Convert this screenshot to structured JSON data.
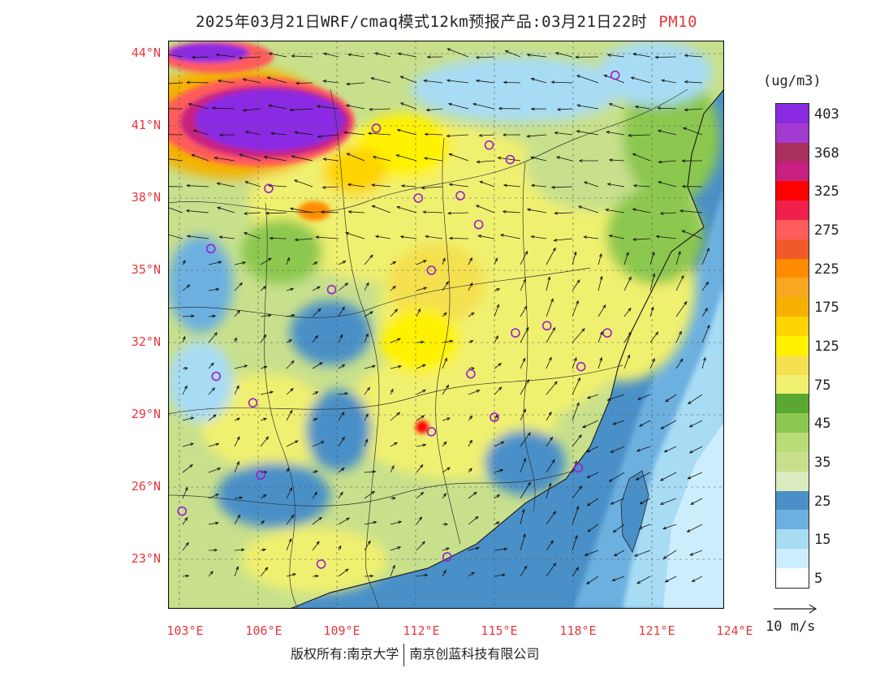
{
  "header": {
    "title": "2025年03月21日WRF/cmaq模式12km预报产品:03月21日22时",
    "variable": "PM10"
  },
  "axes": {
    "lat_labels": [
      "44°N",
      "41°N",
      "38°N",
      "35°N",
      "32°N",
      "29°N",
      "26°N",
      "23°N"
    ],
    "lon_labels": [
      "103°E",
      "106°E",
      "109°E",
      "112°E",
      "115°E",
      "118°E",
      "121°E",
      "124°E"
    ],
    "lon_range": [
      103,
      124
    ],
    "lat_range": [
      21,
      44.5
    ]
  },
  "legend": {
    "unit": "(ug/m3)",
    "levels": [
      {
        "label": "403",
        "color": "#8a2be2"
      },
      {
        "label": "",
        "color": "#a33ad0"
      },
      {
        "label": "368",
        "color": "#a8305c"
      },
      {
        "label": "",
        "color": "#c82080"
      },
      {
        "label": "325",
        "color": "#ff0000"
      },
      {
        "label": "",
        "color": "#f0204c"
      },
      {
        "label": "275",
        "color": "#ff5c5c"
      },
      {
        "label": "",
        "color": "#f05a28"
      },
      {
        "label": "225",
        "color": "#ff8c00"
      },
      {
        "label": "",
        "color": "#f8a820"
      },
      {
        "label": "175",
        "color": "#f5b100"
      },
      {
        "label": "",
        "color": "#ffd400"
      },
      {
        "label": "125",
        "color": "#fff200"
      },
      {
        "label": "",
        "color": "#f5e050"
      },
      {
        "label": "75",
        "color": "#f0f070"
      },
      {
        "label": "",
        "color": "#5aa832"
      },
      {
        "label": "45",
        "color": "#8cc850"
      },
      {
        "label": "",
        "color": "#b8dc78"
      },
      {
        "label": "35",
        "color": "#c8e08c"
      },
      {
        "label": "",
        "color": "#dceac0"
      },
      {
        "label": "25",
        "color": "#4a90c8"
      },
      {
        "label": "",
        "color": "#6cb0e0"
      },
      {
        "label": "15",
        "color": "#a8dcf4"
      },
      {
        "label": "",
        "color": "#cceefc"
      },
      {
        "label": "5",
        "color": "#ffffff"
      }
    ],
    "wind_reference": "10 m/s"
  },
  "footer": {
    "copyright_left": "版权所有:南京大学",
    "copyright_right": "南京创蓝科技有限公司"
  },
  "stations": [
    {
      "lon": 103.1,
      "lat": 25.0
    },
    {
      "lon": 104.2,
      "lat": 35.9
    },
    {
      "lon": 104.4,
      "lat": 30.6
    },
    {
      "lon": 105.8,
      "lat": 29.5
    },
    {
      "lon": 106.1,
      "lat": 26.5
    },
    {
      "lon": 106.4,
      "lat": 38.4
    },
    {
      "lon": 108.4,
      "lat": 22.8
    },
    {
      "lon": 108.8,
      "lat": 34.2
    },
    {
      "lon": 110.5,
      "lat": 40.9
    },
    {
      "lon": 112.1,
      "lat": 38.0
    },
    {
      "lon": 112.6,
      "lat": 28.3
    },
    {
      "lon": 112.6,
      "lat": 35.0
    },
    {
      "lon": 113.2,
      "lat": 23.1
    },
    {
      "lon": 113.7,
      "lat": 38.1
    },
    {
      "lon": 114.1,
      "lat": 30.7
    },
    {
      "lon": 114.4,
      "lat": 36.9
    },
    {
      "lon": 114.8,
      "lat": 40.2
    },
    {
      "lon": 115.0,
      "lat": 28.9
    },
    {
      "lon": 115.6,
      "lat": 39.6
    },
    {
      "lon": 115.8,
      "lat": 32.4
    },
    {
      "lon": 117.0,
      "lat": 32.7
    },
    {
      "lon": 118.2,
      "lat": 26.8
    },
    {
      "lon": 118.3,
      "lat": 31.0
    },
    {
      "lon": 119.3,
      "lat": 32.4
    },
    {
      "lon": 119.6,
      "lat": 43.1
    }
  ]
}
